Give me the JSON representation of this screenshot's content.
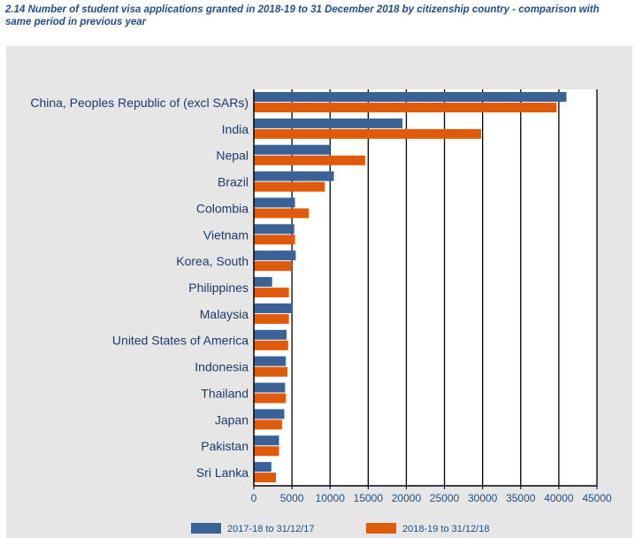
{
  "chart_data": {
    "type": "bar",
    "orientation": "horizontal",
    "title": "2.14 Number of student visa applications granted in 2018-19 to 31 December 2018 by citizenship country - comparison with same period in previous year",
    "categories": [
      "China, Peoples Republic of (excl SARs)",
      "India",
      "Nepal",
      "Brazil",
      "Colombia",
      "Vietnam",
      "Korea, South",
      "Philippines",
      "Malaysia",
      "United States of America",
      "Indonesia",
      "Thailand",
      "Japan",
      "Pakistan",
      "Sri Lanka"
    ],
    "series": [
      {
        "name": "2017-18 to 31/12/17",
        "color": "#3b6296",
        "values": [
          41000,
          19500,
          10000,
          10500,
          5400,
          5300,
          5500,
          2400,
          5100,
          4300,
          4200,
          4100,
          4000,
          3300,
          2300
        ]
      },
      {
        "name": "2018-19 to 31/12/18",
        "color": "#e05a0c",
        "values": [
          39700,
          29800,
          14600,
          9300,
          7200,
          5400,
          5000,
          4600,
          4600,
          4500,
          4400,
          4200,
          3700,
          3300,
          2900
        ]
      }
    ],
    "xticks": [
      "0",
      "5000",
      "10000",
      "15000",
      "20000",
      "25000",
      "30000",
      "35000",
      "40000",
      "45000"
    ],
    "xlim": [
      0,
      45000
    ],
    "grid": true,
    "legend_position": "bottom",
    "xlabel": "",
    "ylabel": ""
  }
}
